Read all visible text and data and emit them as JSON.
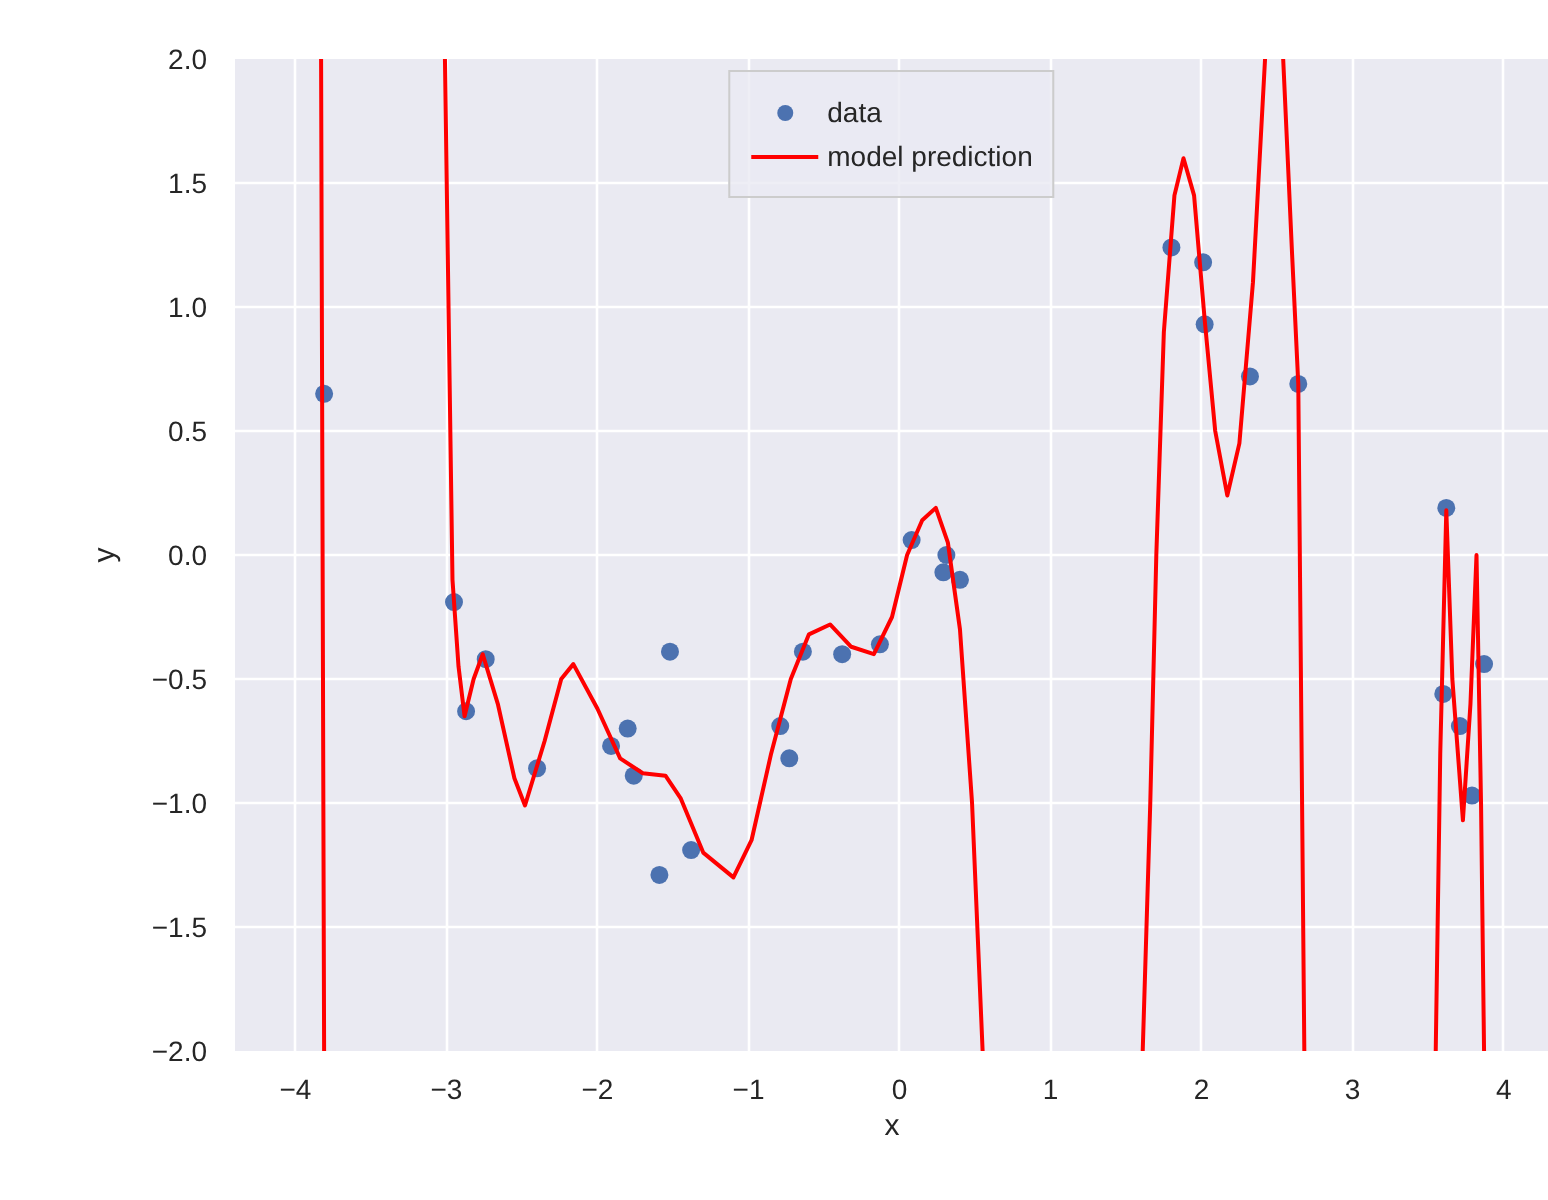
{
  "chart_data": {
    "type": "scatter",
    "xlabel": "x",
    "ylabel": "y",
    "xlim": [
      -4.4,
      4.3
    ],
    "ylim": [
      -2.0,
      2.0
    ],
    "xticks": [
      -4,
      -3,
      -2,
      -1,
      0,
      1,
      2,
      3,
      4
    ],
    "yticks": [
      {
        "value": -2.0,
        "label": "−2.0"
      },
      {
        "value": -1.5,
        "label": "−1.5"
      },
      {
        "value": -1.0,
        "label": "−1.0"
      },
      {
        "value": -0.5,
        "label": "−0.5"
      },
      {
        "value": 0.0,
        "label": "0.0"
      },
      {
        "value": 0.5,
        "label": "0.5"
      },
      {
        "value": 1.0,
        "label": "1.0"
      },
      {
        "value": 1.5,
        "label": "1.5"
      },
      {
        "value": 2.0,
        "label": "2.0"
      }
    ],
    "grid": true,
    "legend": "top",
    "series": [
      {
        "name": "data",
        "marker": "circle",
        "color": "#4c72b0",
        "x": [
          -3.81,
          -2.95,
          -2.87,
          -2.74,
          -2.4,
          -1.91,
          -1.8,
          -1.76,
          -1.52,
          -1.59,
          -1.38,
          -0.79,
          -0.73,
          -0.64,
          -0.38,
          -0.13,
          0.08,
          0.31,
          0.29,
          0.4,
          1.8,
          2.01,
          2.02,
          2.32,
          2.64,
          3.62,
          3.6,
          3.71,
          3.79,
          3.87
        ],
        "values": [
          0.65,
          -0.19,
          -0.63,
          -0.42,
          -0.86,
          -0.77,
          -0.7,
          -0.89,
          -0.39,
          -1.29,
          -1.19,
          -0.69,
          -0.82,
          -0.39,
          -0.4,
          -0.36,
          0.06,
          0.0,
          -0.07,
          -0.1,
          1.24,
          1.18,
          0.93,
          0.72,
          0.69,
          0.19,
          -0.56,
          -0.69,
          -0.97,
          -0.44
        ]
      },
      {
        "name": "model prediction",
        "type": "line",
        "marker": "none",
        "color": "#ff0000",
        "line_style": "solid",
        "x": [
          -3.83,
          -3.81,
          -3.5,
          -3.01,
          -2.96,
          -2.92,
          -2.88,
          -2.82,
          -2.76,
          -2.66,
          -2.55,
          -2.48,
          -2.35,
          -2.24,
          -2.16,
          -2.0,
          -1.85,
          -1.7,
          -1.55,
          -1.45,
          -1.3,
          -1.1,
          -0.98,
          -0.85,
          -0.72,
          -0.6,
          -0.46,
          -0.32,
          -0.17,
          -0.05,
          0.05,
          0.15,
          0.24,
          0.32,
          0.4,
          0.48,
          0.55,
          1.0,
          1.61,
          1.66,
          1.7,
          1.75,
          1.82,
          1.88,
          1.95,
          2.02,
          2.09,
          2.17,
          2.25,
          2.34,
          2.42,
          2.48,
          2.54,
          2.6,
          2.64,
          2.68,
          3.2,
          3.55,
          3.58,
          3.62,
          3.66,
          3.73,
          3.78,
          3.82,
          3.85,
          3.87
        ],
        "values": [
          2.0,
          -2.0,
          null,
          2.0,
          -0.1,
          -0.45,
          -0.65,
          -0.5,
          -0.4,
          -0.6,
          -0.9,
          -1.01,
          -0.75,
          -0.5,
          -0.44,
          -0.62,
          -0.82,
          -0.88,
          -0.89,
          -0.98,
          -1.2,
          -1.3,
          -1.15,
          -0.8,
          -0.5,
          -0.32,
          -0.28,
          -0.37,
          -0.4,
          -0.25,
          0.0,
          0.14,
          0.19,
          0.05,
          -0.3,
          -1.0,
          -2.0,
          null,
          -2.0,
          -1.0,
          0.0,
          0.9,
          1.45,
          1.6,
          1.45,
          0.95,
          0.5,
          0.24,
          0.45,
          1.1,
          2.0,
          null,
          2.0,
          1.2,
          0.69,
          -2.0,
          null,
          -2.0,
          -0.8,
          0.18,
          -0.5,
          -1.07,
          -0.6,
          0.0,
          -1.0,
          -2.0
        ]
      }
    ]
  }
}
